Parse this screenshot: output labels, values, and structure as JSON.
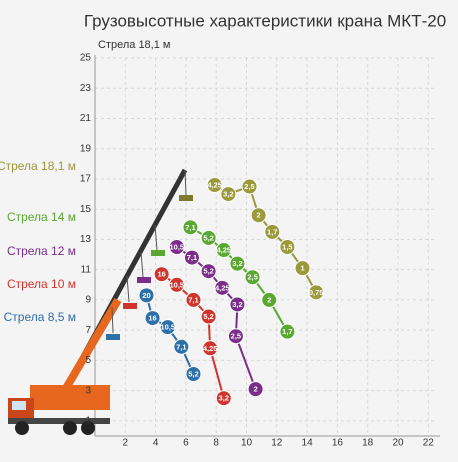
{
  "chart_data": {
    "type": "line",
    "title": "Грузовысотные характеристики крана МКТ-20",
    "subtitle": "Стрела 18,1 м",
    "xlim": [
      0,
      22.4
    ],
    "ylim": [
      0,
      25
    ],
    "xticks": [
      2,
      4,
      6,
      8,
      10,
      12,
      14,
      16,
      18,
      20,
      22
    ],
    "yticks": [
      1,
      3,
      5,
      7,
      9,
      11,
      13,
      15,
      17,
      19,
      21,
      23,
      25
    ],
    "grid": true,
    "series": [
      {
        "name": "Стрела 18,1 м",
        "color": "#9a9a3c",
        "x": [
          7.9,
          8.8,
          10.2,
          10.8,
          11.7,
          12.7,
          13.7,
          14.6
        ],
        "values": [
          16.6,
          16.0,
          16.5,
          14.6,
          13.5,
          12.5,
          11.1,
          9.5
        ],
        "point_labels": [
          "4,25",
          "3,2",
          "2,5",
          "2",
          "1,7",
          "1,5",
          "1",
          "0,75"
        ]
      },
      {
        "name": "Стрела 14 м",
        "color": "#5aa832",
        "x": [
          6.3,
          7.5,
          8.5,
          9.4,
          10.4,
          11.5,
          12.7
        ],
        "values": [
          13.8,
          13.1,
          12.3,
          11.4,
          10.5,
          9.0,
          6.9
        ],
        "point_labels": [
          "7,1",
          "5,2",
          "4,25",
          "3,2",
          "2,5",
          "2",
          "1,7"
        ]
      },
      {
        "name": "Стрела 12 м",
        "color": "#7b2d8a",
        "x": [
          5.4,
          6.4,
          7.5,
          8.4,
          9.4,
          9.3,
          10.6
        ],
        "values": [
          12.5,
          11.8,
          10.9,
          9.8,
          8.7,
          6.6,
          3.1
        ],
        "point_labels": [
          "10,5",
          "7,1",
          "5,2",
          "4,25",
          "3,2",
          "2,5",
          "2"
        ]
      },
      {
        "name": "Стрела 10 м",
        "color": "#d0352d",
        "x": [
          4.4,
          5.4,
          6.5,
          7.5,
          7.6,
          8.5
        ],
        "values": [
          10.7,
          10.0,
          9.0,
          7.9,
          5.8,
          2.5
        ],
        "point_labels": [
          "16",
          "10,5",
          "7,1",
          "5,2",
          "4,25",
          "3,2"
        ]
      },
      {
        "name": "Стрела 8,5 м",
        "color": "#2e6fa8",
        "x": [
          3.4,
          3.8,
          4.8,
          5.7,
          6.5
        ],
        "values": [
          9.3,
          7.8,
          7.2,
          5.9,
          4.1
        ],
        "point_labels": [
          "20",
          "16",
          "10,5",
          "7,1",
          "5,2"
        ]
      }
    ]
  }
}
